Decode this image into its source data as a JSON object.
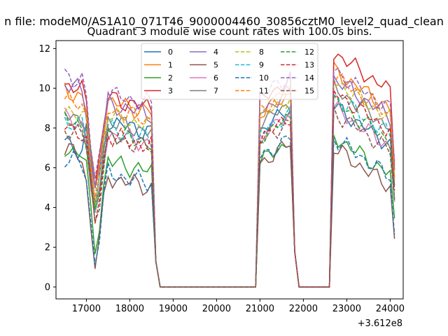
{
  "suptitle": "n file: modeM0/AS1A10_071T46_9000004460_30856cztM0_level2_quad_clean",
  "title": "Quadrant 3 module wise count rates with 100.0s bins.",
  "offset_label": "+3.612e8",
  "chart_data": {
    "type": "line",
    "title": "Quadrant 3 module wise count rates with 100.0s bins.",
    "xlabel": "",
    "ylabel": "",
    "x_offset": 361200000,
    "xlim": [
      16300,
      24300
    ],
    "ylim": [
      -0.6,
      12.4
    ],
    "x_ticks": [
      17000,
      18000,
      19000,
      20000,
      21000,
      22000,
      23000,
      24000
    ],
    "y_ticks": [
      0,
      2,
      4,
      6,
      8,
      10,
      12
    ],
    "grid": false,
    "legend": {
      "placement": "top-center",
      "columns": 4
    },
    "x": [
      16500,
      16600,
      16700,
      16800,
      16900,
      17000,
      17100,
      17200,
      17300,
      17400,
      17500,
      17600,
      17700,
      17800,
      17900,
      18000,
      18100,
      18200,
      18300,
      18400,
      18500,
      18600,
      18700,
      18800,
      18900,
      19000,
      19100,
      19200,
      19300,
      19400,
      19500,
      19600,
      19700,
      19800,
      19900,
      20000,
      20100,
      20200,
      20300,
      20400,
      20500,
      20600,
      20700,
      20800,
      20900,
      21000,
      21100,
      21200,
      21300,
      21400,
      21500,
      21600,
      21700,
      21800,
      21900,
      22000,
      22100,
      22200,
      22300,
      22400,
      22500,
      22600,
      22700,
      22800,
      22900,
      23000,
      23100,
      23200,
      23300,
      23400,
      23500,
      23600,
      23700,
      23800,
      23900,
      24000,
      24100
    ],
    "active_a": [
      0,
      1,
      2,
      3,
      4,
      5,
      6,
      7,
      8,
      9,
      10,
      11,
      12,
      13,
      14,
      15,
      16,
      17,
      18,
      19,
      20
    ],
    "active_b": [
      45,
      46,
      47,
      48,
      49,
      50,
      51,
      52
    ],
    "active_c": [
      62,
      63,
      64,
      65,
      66,
      67,
      68,
      69,
      70,
      71,
      72,
      73,
      74,
      75,
      76
    ],
    "series": [
      {
        "name": "0",
        "color": "#1f77b4",
        "dash": "solid",
        "base": 8.6,
        "values_a_start": 7.2,
        "values_b_start": 7.9,
        "values_c_start": 9.1
      },
      {
        "name": "1",
        "color": "#ff7f0e",
        "dash": "solid",
        "base": 9.6,
        "values_a_start": 9.9,
        "values_b_start": 8.7,
        "values_c_start": 10.9
      },
      {
        "name": "2",
        "color": "#2ca02c",
        "dash": "solid",
        "base": 6.6,
        "values_a_start": 7.0,
        "values_b_start": 6.3,
        "values_c_start": 7.6
      },
      {
        "name": "3",
        "color": "#d62728",
        "dash": "solid",
        "base": 9.8,
        "values_a_start": 10.2,
        "values_b_start": 9.4,
        "values_c_start": 11.8
      },
      {
        "name": "4",
        "color": "#9467bd",
        "dash": "solid",
        "base": 9.5,
        "values_a_start": 10.2,
        "values_b_start": 8.8,
        "values_c_start": 10.5
      },
      {
        "name": "5",
        "color": "#8c564b",
        "dash": "solid",
        "base": 5.8,
        "values_a_start": 6.9,
        "values_b_start": 6.2,
        "values_c_start": 7.0
      },
      {
        "name": "6",
        "color": "#e377c2",
        "dash": "solid",
        "base": 8.0,
        "values_a_start": 8.5,
        "values_b_start": 7.6,
        "values_c_start": 9.0
      },
      {
        "name": "7",
        "color": "#7f7f7f",
        "dash": "solid",
        "base": 8.6,
        "values_a_start": 8.8,
        "values_b_start": 8.2,
        "values_c_start": 10.0
      },
      {
        "name": "8",
        "color": "#bcbd22",
        "dash": "dashed",
        "base": 8.9,
        "values_a_start": 9.0,
        "values_b_start": 8.5,
        "values_c_start": 10.4
      },
      {
        "name": "9",
        "color": "#17becf",
        "dash": "dashed",
        "base": 8.2,
        "values_a_start": 8.4,
        "values_b_start": 7.7,
        "values_c_start": 9.6
      },
      {
        "name": "10",
        "color": "#1f77b4",
        "dash": "dashed",
        "base": 6.0,
        "values_a_start": 6.5,
        "values_b_start": 6.5,
        "values_c_start": 7.5
      },
      {
        "name": "11",
        "color": "#ff7f0e",
        "dash": "dashed",
        "base": 9.2,
        "values_a_start": 9.4,
        "values_b_start": 8.9,
        "values_c_start": 10.6
      },
      {
        "name": "12",
        "color": "#2ca02c",
        "dash": "dashed",
        "base": 8.0,
        "values_a_start": 8.4,
        "values_b_start": 7.5,
        "values_c_start": 9.3
      },
      {
        "name": "13",
        "color": "#d62728",
        "dash": "dashed",
        "base": 7.9,
        "values_a_start": 8.1,
        "values_b_start": 7.5,
        "values_c_start": 9.8
      },
      {
        "name": "14",
        "color": "#9467bd",
        "dash": "dashed",
        "base": 10.0,
        "values_a_start": 10.7,
        "values_b_start": 9.6,
        "values_c_start": 10.9
      },
      {
        "name": "15",
        "color": "#8c564b",
        "dash": "dashed",
        "base": 7.8,
        "values_a_start": 8.0,
        "values_b_start": 7.3,
        "values_c_start": 8.8
      }
    ]
  }
}
